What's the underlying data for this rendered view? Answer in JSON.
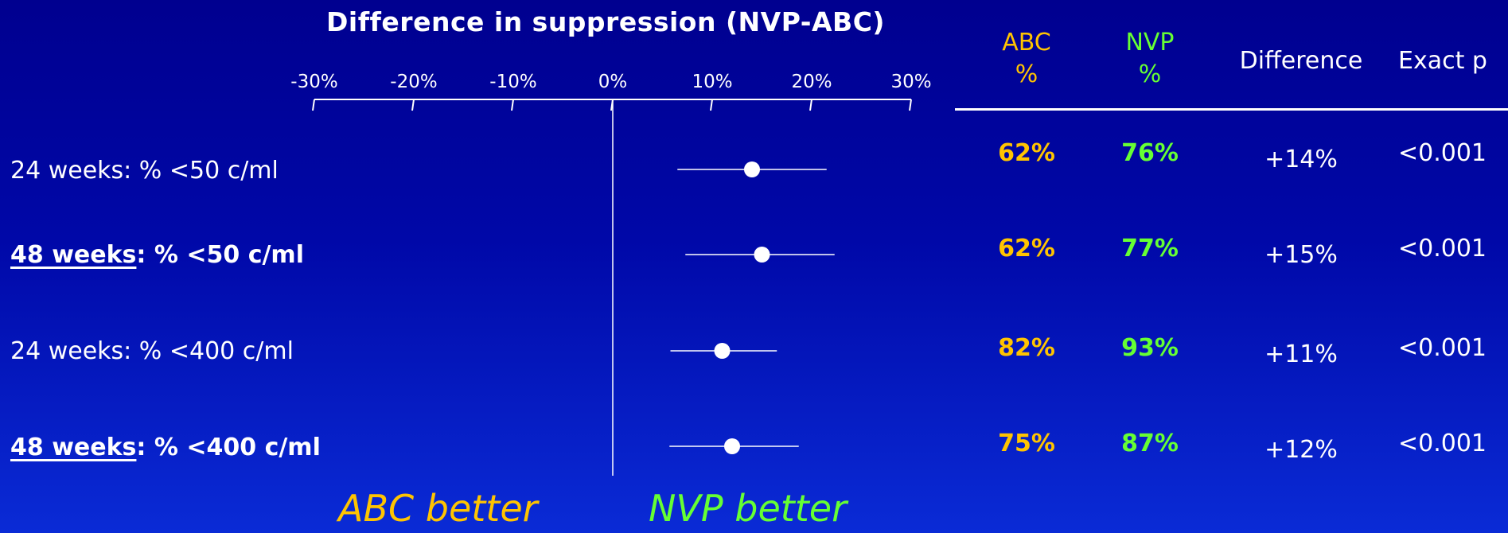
{
  "chart_data": {
    "type": "forest",
    "title": "Difference in suppression (NVP-ABC)",
    "x_ticks": [
      "-30%",
      "-20%",
      "-10%",
      "0%",
      "10%",
      "20%",
      "30%"
    ],
    "xlim": [
      -30,
      30
    ],
    "rows": [
      {
        "label": "24 weeks: % <50 c/ml",
        "label_parts": [
          "",
          "24 weeks: % <50 c/ml"
        ],
        "bold": false,
        "estimate": 14,
        "ci": [
          6.5,
          21.5
        ],
        "abc": "62%",
        "nvp": "76%",
        "difference": "+14%",
        "p": "<0.001"
      },
      {
        "label": "48 weeks: % <50 c/ml",
        "label_parts": [
          "48 weeks",
          ": % <50 c/ml"
        ],
        "bold": true,
        "estimate": 15,
        "ci": [
          7.3,
          22.3
        ],
        "abc": "62%",
        "nvp": "77%",
        "difference": "+15%",
        "p": "<0.001"
      },
      {
        "label": "24 weeks: % <400 c/ml",
        "label_parts": [
          "",
          "24 weeks: % <400 c/ml"
        ],
        "bold": false,
        "estimate": 11,
        "ci": [
          5.8,
          16.5
        ],
        "abc": "82%",
        "nvp": "93%",
        "difference": "+11%",
        "p": "<0.001"
      },
      {
        "label": "48 weeks: % <400 c/ml",
        "label_parts": [
          "48 weeks",
          ": % <400 c/ml"
        ],
        "bold": true,
        "estimate": 12,
        "ci": [
          5.7,
          18.7
        ],
        "abc": "75%",
        "nvp": "87%",
        "difference": "+12%",
        "p": "<0.001"
      }
    ]
  },
  "table": {
    "abc_header": [
      "ABC",
      "%"
    ],
    "nvp_header": [
      "NVP",
      "%"
    ],
    "difference_header": "Difference",
    "p_header": "Exact p"
  },
  "footer": {
    "left": "ABC better",
    "right": "NVP better"
  },
  "colors": {
    "abc": "#ffc400",
    "nvp": "#66ff33",
    "background_top": "#00008f",
    "background_bottom": "#0a2bd6"
  }
}
